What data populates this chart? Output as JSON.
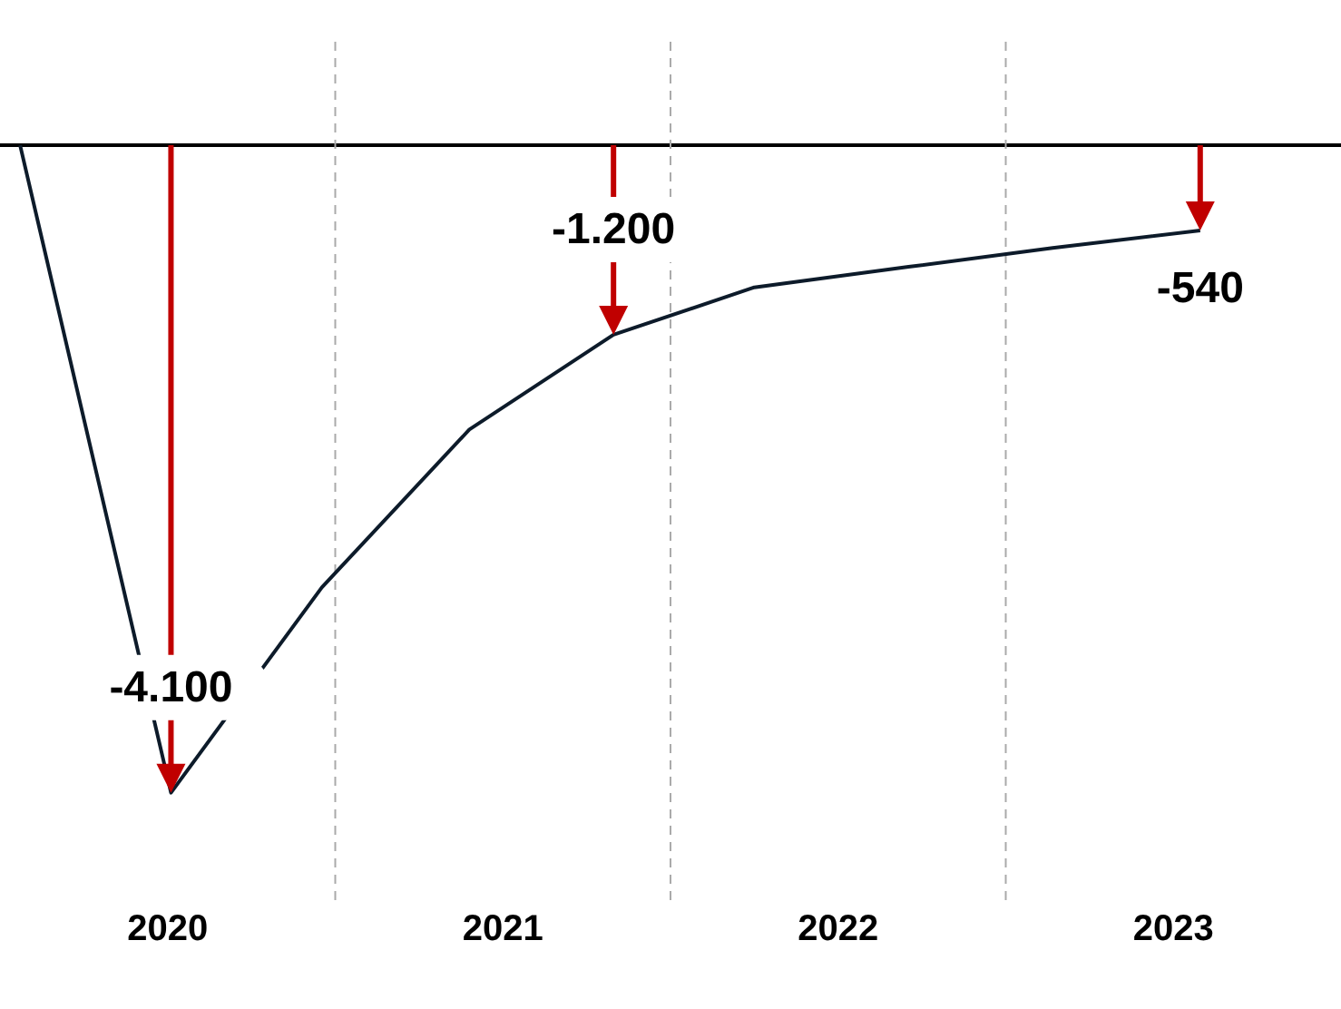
{
  "chart_data": {
    "type": "line",
    "x": [
      2020.06,
      2020.51,
      2020.96,
      2021.4,
      2021.83,
      2022.25,
      2022.71,
      2023.14,
      2023.58
    ],
    "series": [
      {
        "color": "#0d1b2a",
        "values": [
          0,
          -4100,
          -2800,
          -1800,
          -1200,
          -900,
          -770,
          -650,
          -540
        ],
        "value_labels": [
          null,
          "-4.100",
          null,
          null,
          "-1.200",
          null,
          null,
          null,
          "-540"
        ]
      }
    ],
    "xlim": [
      2020,
      2024
    ],
    "xticks": [
      {
        "value": 2020.5,
        "label": "2020"
      },
      {
        "value": 2021.5,
        "label": "2021"
      },
      {
        "value": 2022.5,
        "label": "2022"
      },
      {
        "value": 2023.5,
        "label": "2023"
      }
    ],
    "ylim": [
      -4780,
      690
    ],
    "tick_labels": "x",
    "marker": "none",
    "line_style": "solid",
    "ref_lines": [
      {
        "axis": "y",
        "value": 0,
        "color": "#000000",
        "line_style": "solid"
      },
      {
        "axis": "x",
        "value": 2021,
        "color": "#aaaaaa",
        "line_style": "dashed"
      },
      {
        "axis": "x",
        "value": 2022,
        "color": "#aaaaaa",
        "line_style": "dashed"
      },
      {
        "axis": "x",
        "value": 2023,
        "color": "#aaaaaa",
        "line_style": "dashed"
      }
    ]
  }
}
